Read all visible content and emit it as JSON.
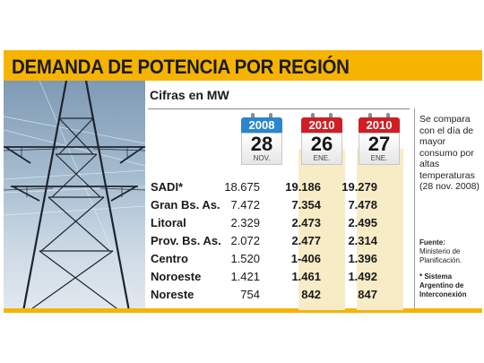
{
  "title": "DEMANDA DE POTENCIA POR REGIÓN",
  "subtitle": "Cifras en MW",
  "colors": {
    "banner": "#f6b400",
    "cal_2008": "#2a86d0",
    "cal_2010": "#cf1f24",
    "highlight": "#f8ecc7"
  },
  "calendars": [
    {
      "year": "2008",
      "day": "28",
      "month": "NOV.",
      "color": "#2a86d0"
    },
    {
      "year": "2010",
      "day": "26",
      "month": "ENE.",
      "color": "#cf1f24"
    },
    {
      "year": "2010",
      "day": "27",
      "month": "ENE.",
      "color": "#cf1f24"
    }
  ],
  "rows": [
    {
      "region": "SADI*",
      "v1": "18.675",
      "v2": "19.186",
      "v3": "19.279"
    },
    {
      "region": "Gran Bs. As.",
      "v1": "7.472",
      "v2": "7.354",
      "v3": "7.478"
    },
    {
      "region": "Litoral",
      "v1": "2.329",
      "v2": "2.473",
      "v3": "2.495"
    },
    {
      "region": "Prov. Bs. As.",
      "v1": "2.072",
      "v2": "2.477",
      "v3": "2.314"
    },
    {
      "region": "Centro",
      "v1": "1.520",
      "v2": "1-406",
      "v3": "1.396"
    },
    {
      "region": "Noroeste",
      "v1": "1.421",
      "v2": "1.461",
      "v3": "1.492"
    },
    {
      "region": "Noreste",
      "v1": "754",
      "v2": "842",
      "v3": "847"
    }
  ],
  "side_note": "Se compara con el día de mayor consumo por altas temperaturas (28 nov. 2008)",
  "source_label": "Fuente:",
  "source_text": "Ministerio de Planificación.",
  "footnote": "* Sistema Argentino de Interconexión",
  "photo_icon": "electricity-tower-photo"
}
